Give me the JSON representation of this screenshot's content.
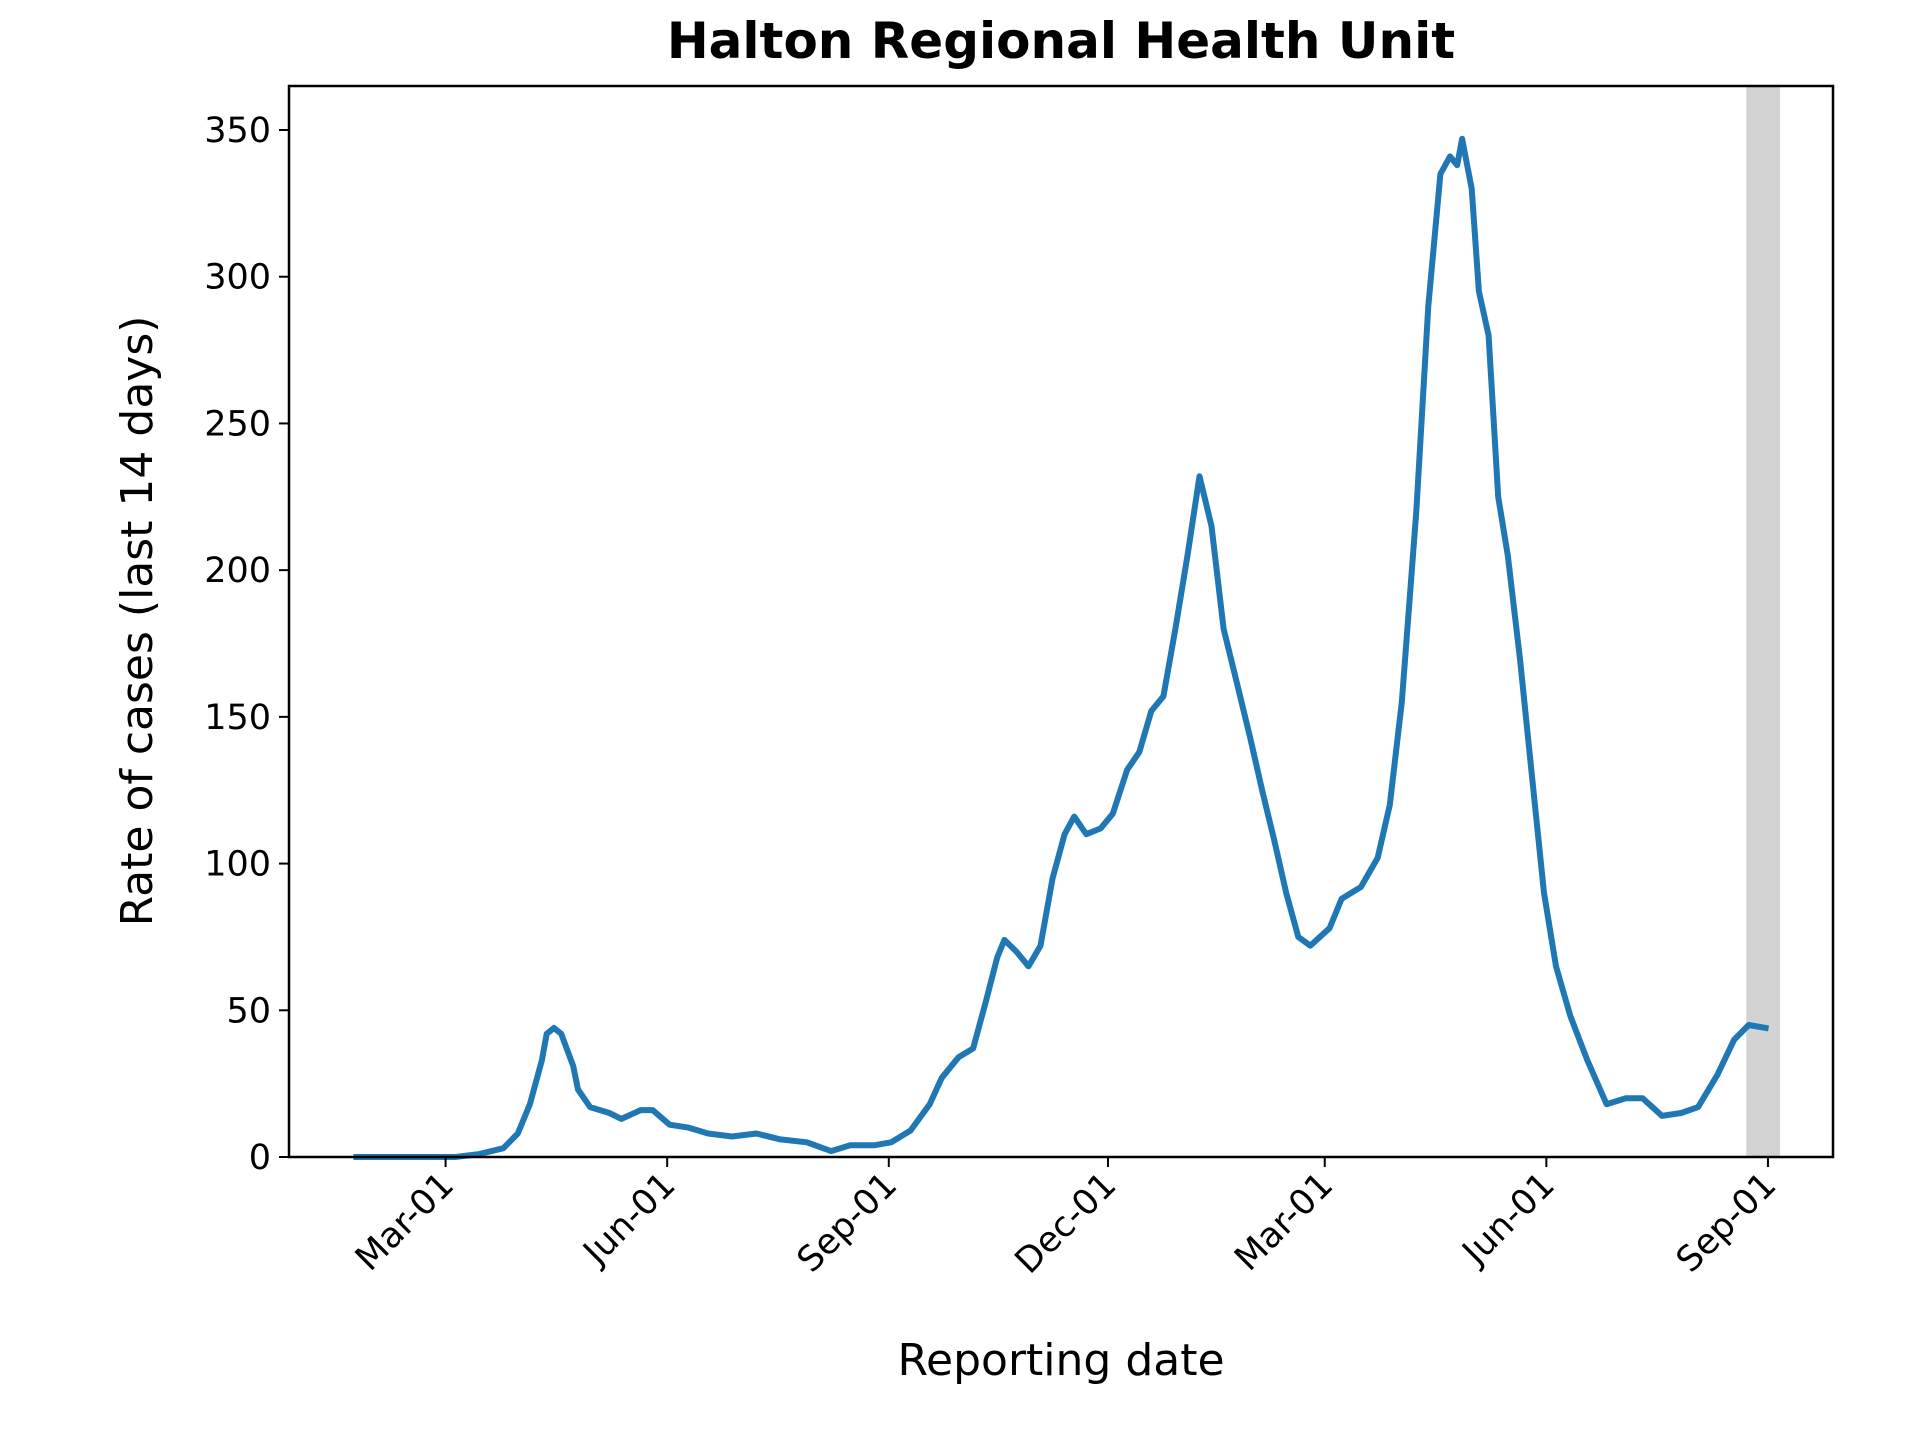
{
  "chart_data": {
    "type": "line",
    "title": "Halton Regional Health Unit",
    "xlabel": "Reporting date",
    "ylabel": "Rate of cases (last 14 days)",
    "color": "#1f77b4",
    "x": [
      23,
      64,
      74,
      84,
      90,
      95,
      100,
      102,
      105,
      108,
      113,
      115,
      120,
      128,
      133,
      141,
      146,
      153,
      161,
      169,
      179,
      189,
      199,
      210,
      220,
      228,
      238,
      245,
      253,
      261,
      266,
      273,
      279,
      284,
      289,
      292,
      297,
      302,
      307,
      312,
      317,
      321,
      326,
      332,
      337,
      343,
      348,
      353,
      358,
      363,
      368,
      373,
      378,
      383,
      389,
      394,
      399,
      404,
      409,
      414,
      419,
      427,
      432,
      440,
      447,
      452,
      457,
      463,
      468,
      473,
      477,
      480,
      482,
      486,
      489,
      493,
      497,
      501,
      506,
      511,
      516,
      521,
      527,
      534,
      542,
      550,
      557,
      565,
      573,
      580,
      588,
      595,
      601,
      608
    ],
    "values": [
      0,
      0,
      1,
      3,
      8,
      18,
      33,
      42,
      44,
      42,
      31,
      23,
      17,
      15,
      13,
      16,
      16,
      11,
      10,
      8,
      7,
      8,
      6,
      5,
      2,
      4,
      4,
      5,
      9,
      18,
      27,
      34,
      37,
      52,
      68,
      74,
      70,
      65,
      72,
      95,
      110,
      116,
      110,
      112,
      117,
      132,
      138,
      152,
      157,
      180,
      205,
      232,
      215,
      180,
      160,
      143,
      125,
      108,
      90,
      75,
      72,
      78,
      88,
      92,
      102,
      120,
      155,
      220,
      290,
      335,
      341,
      338,
      347,
      330,
      295,
      280,
      225,
      205,
      170,
      130,
      90,
      65,
      48,
      33,
      18,
      20,
      20,
      14,
      15,
      17,
      28,
      40,
      45,
      44
    ],
    "xlim": [
      -5,
      636
    ],
    "xticks": [
      {
        "value": 60,
        "label": "Mar-01"
      },
      {
        "value": 152,
        "label": "Jun-01"
      },
      {
        "value": 244,
        "label": "Sep-01"
      },
      {
        "value": 335,
        "label": "Dec-01"
      },
      {
        "value": 425,
        "label": "Mar-01"
      },
      {
        "value": 517,
        "label": "Jun-01"
      },
      {
        "value": 609,
        "label": "Sep-01"
      }
    ],
    "ylim": [
      0,
      365
    ],
    "yticks": [
      0,
      50,
      100,
      150,
      200,
      250,
      300,
      350
    ],
    "span": [
      600,
      614
    ],
    "span_color": "#d3d3d3",
    "grid": false
  }
}
